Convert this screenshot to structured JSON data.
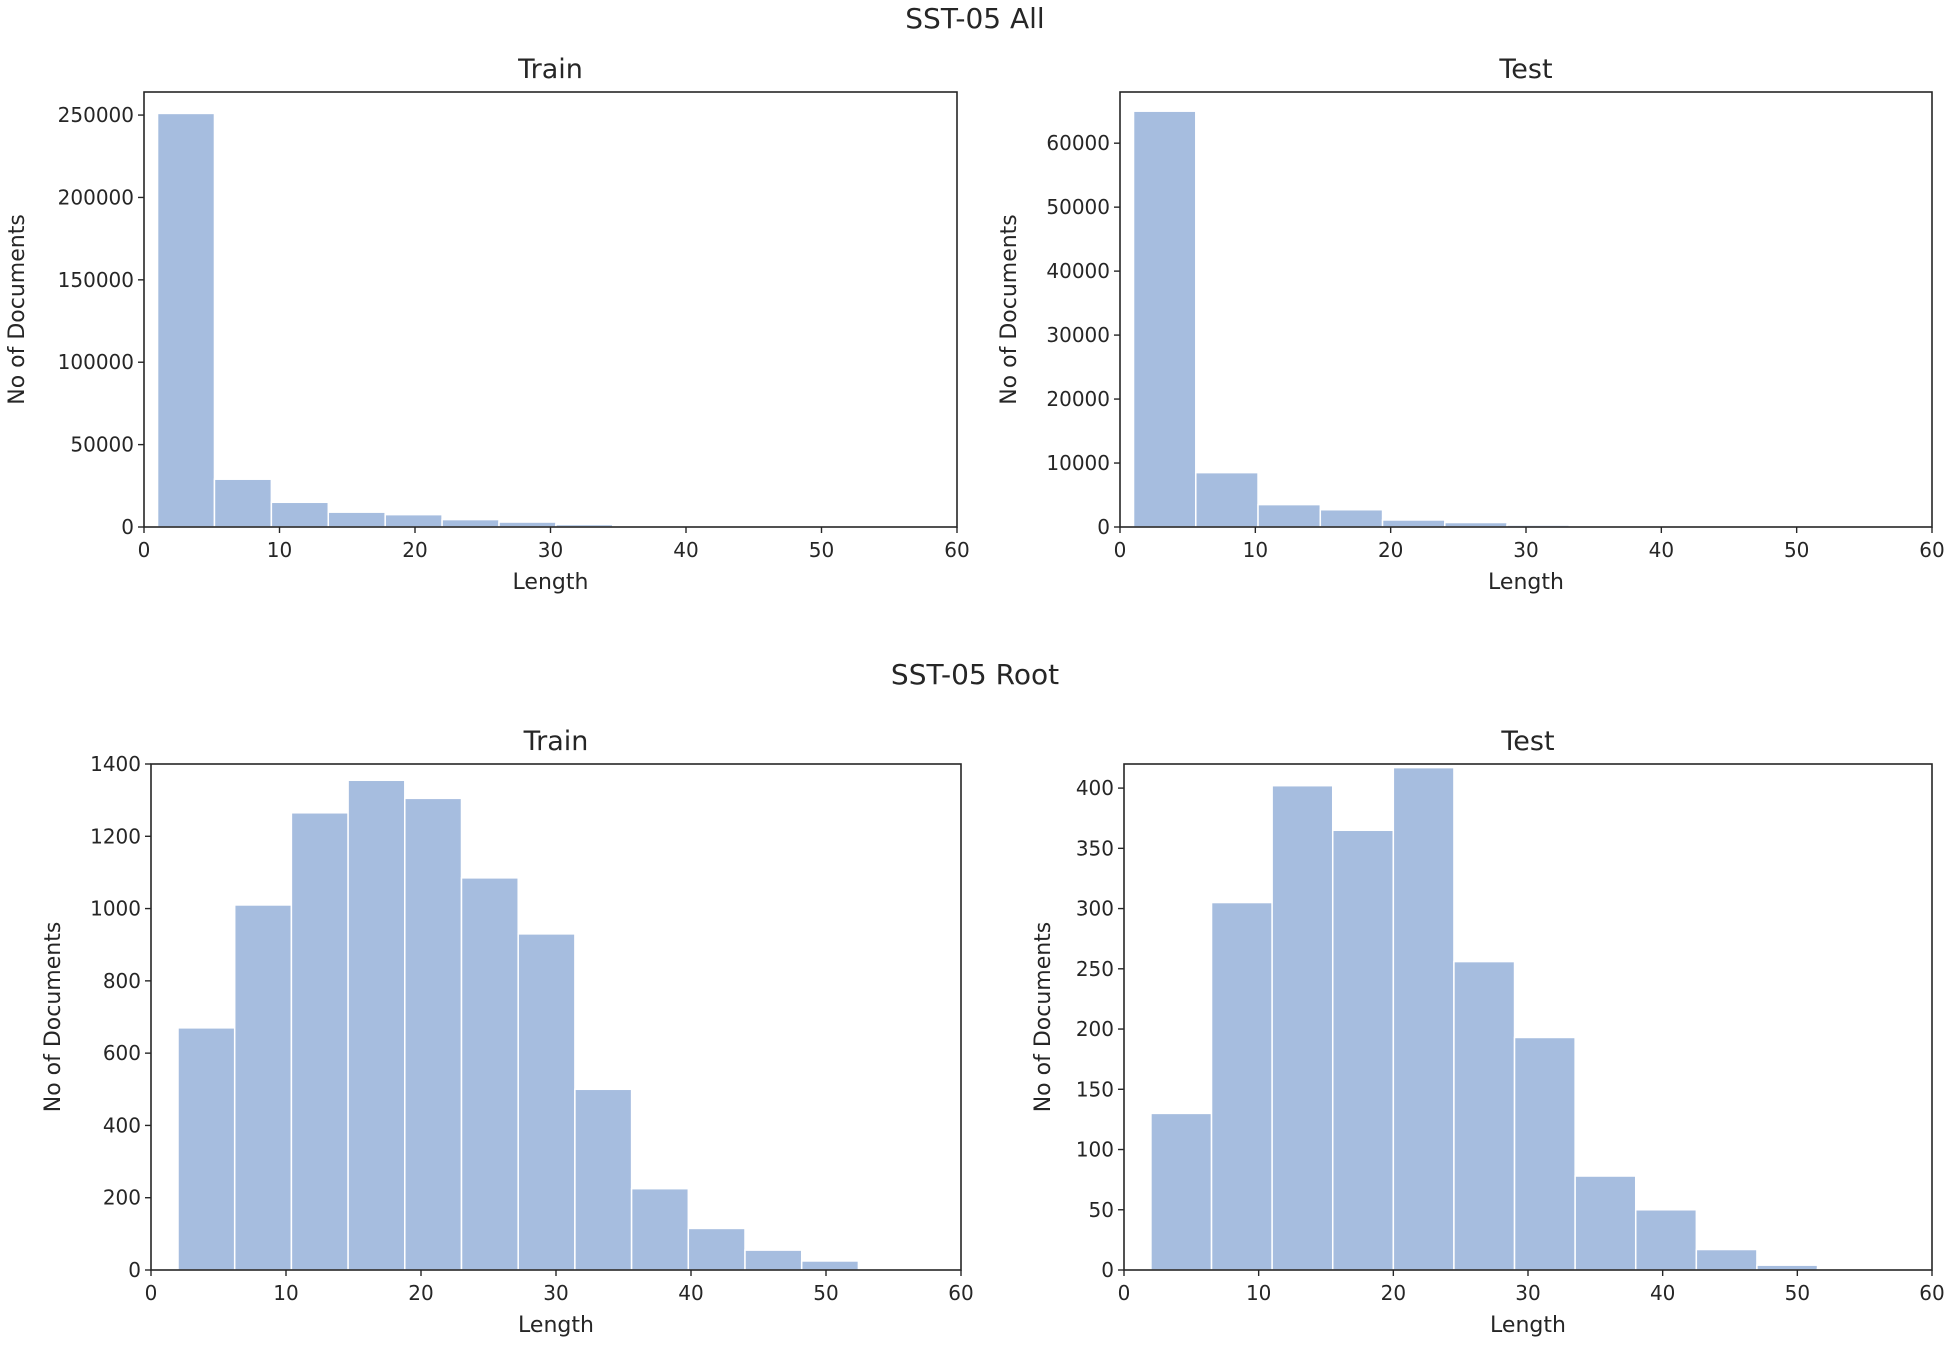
{
  "figure": {
    "suptitle_top": "SST-05 All",
    "suptitle_bottom": "SST-05 Root"
  },
  "colors": {
    "bar": "#a6bddf",
    "bar_edge": "#ffffff",
    "axis": "#262626"
  },
  "chart_data": [
    {
      "type": "bar",
      "group": "SST-05 All",
      "title": "Train",
      "xlabel": "Length",
      "ylabel": "No of Documents",
      "xlim": [
        0,
        60
      ],
      "ylim": [
        0,
        264000
      ],
      "xticks": [
        0,
        10,
        20,
        30,
        40,
        50,
        60
      ],
      "yticks": [
        0,
        50000,
        100000,
        150000,
        200000,
        250000
      ],
      "bin_edges": [
        1,
        5.2,
        9.4,
        13.6,
        17.8,
        22,
        26.2,
        30.4,
        34.6,
        38.8,
        43,
        47.2,
        51.4,
        55.6
      ],
      "values": [
        251000,
        29000,
        15000,
        9000,
        7500,
        4500,
        3000,
        1500,
        800,
        400,
        200,
        100,
        50
      ]
    },
    {
      "type": "bar",
      "group": "SST-05 All",
      "title": "Test",
      "xlabel": "Length",
      "ylabel": "No of Documents",
      "xlim": [
        0,
        60
      ],
      "ylim": [
        0,
        68000
      ],
      "xticks": [
        0,
        10,
        20,
        30,
        40,
        50,
        60
      ],
      "yticks": [
        0,
        10000,
        20000,
        30000,
        40000,
        50000,
        60000
      ],
      "bin_edges": [
        1,
        5.6,
        10.2,
        14.8,
        19.4,
        24,
        28.6,
        33.2,
        37.8,
        42.4,
        47,
        51.6,
        56.2
      ],
      "values": [
        65000,
        8500,
        3500,
        2700,
        1100,
        700,
        300,
        150,
        80,
        40,
        20,
        10
      ]
    },
    {
      "type": "bar",
      "group": "SST-05 Root",
      "title": "Train",
      "xlabel": "Length",
      "ylabel": "No of Documents",
      "xlim": [
        0,
        60
      ],
      "ylim": [
        0,
        1400
      ],
      "xticks": [
        0,
        10,
        20,
        30,
        40,
        50,
        60
      ],
      "yticks": [
        0,
        200,
        400,
        600,
        800,
        1000,
        1200,
        1400
      ],
      "bin_edges": [
        2,
        6.2,
        10.4,
        14.6,
        18.8,
        23,
        27.2,
        31.4,
        35.6,
        39.8,
        44,
        48.2,
        52.4,
        56.6
      ],
      "values": [
        670,
        1010,
        1265,
        1355,
        1305,
        1085,
        930,
        500,
        225,
        115,
        55,
        25,
        0
      ]
    },
    {
      "type": "bar",
      "group": "SST-05 Root",
      "title": "Test",
      "xlabel": "Length",
      "ylabel": "No of Documents",
      "xlim": [
        0,
        60
      ],
      "ylim": [
        0,
        420
      ],
      "xticks": [
        0,
        10,
        20,
        30,
        40,
        50,
        60
      ],
      "yticks": [
        0,
        50,
        100,
        150,
        200,
        250,
        300,
        350,
        400
      ],
      "bin_edges": [
        2,
        6.5,
        11,
        15.5,
        20,
        24.5,
        29,
        33.5,
        38,
        42.5,
        47,
        51.5,
        56
      ],
      "values": [
        130,
        305,
        402,
        365,
        417,
        256,
        193,
        78,
        50,
        17,
        4,
        1
      ]
    }
  ]
}
